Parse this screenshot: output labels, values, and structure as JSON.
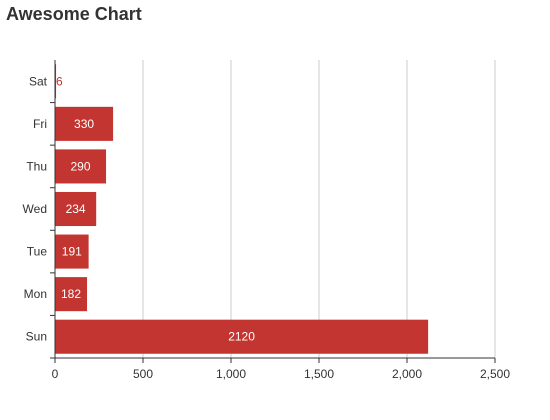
{
  "chart_data": {
    "type": "bar",
    "orientation": "horizontal",
    "title": "Awesome Chart",
    "categories": [
      "Sun",
      "Mon",
      "Tue",
      "Wed",
      "Thu",
      "Fri",
      "Sat"
    ],
    "values": [
      2120,
      182,
      191,
      234,
      290,
      330,
      6
    ],
    "xlim": [
      0,
      2500
    ],
    "x_ticks": [
      0,
      500,
      1000,
      1500,
      2000,
      2500
    ],
    "x_tick_labels": [
      "0",
      "500",
      "1,000",
      "1,500",
      "2,000",
      "2,500"
    ],
    "grid": "vertical",
    "data_labels": "inside",
    "colors": {
      "bar": "#c23531",
      "grid": "#cccccc",
      "axis": "#333333"
    }
  }
}
